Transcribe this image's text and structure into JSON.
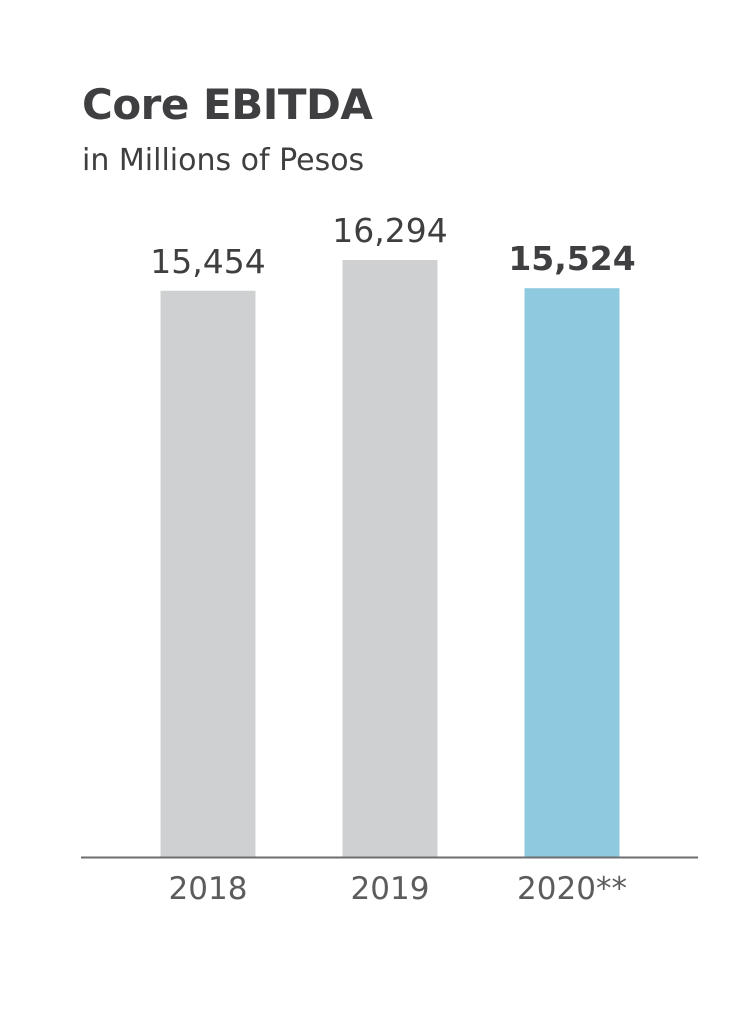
{
  "chart_data": {
    "type": "bar",
    "title": "Core EBITDA",
    "subtitle": "in Millions of Pesos",
    "categories": [
      "2018",
      "2019",
      "2020**"
    ],
    "values": [
      15454,
      16294,
      15524
    ],
    "value_labels": [
      "15,454",
      "16,294",
      "15,524"
    ],
    "bar_colors": [
      "#cfd0d2",
      "#cfd0d2",
      "#8fc9df"
    ],
    "emphasized": [
      false,
      false,
      true
    ],
    "axis_color": "#6e6e70",
    "ylim": [
      0,
      16294
    ],
    "grid": false,
    "legend": "none"
  }
}
